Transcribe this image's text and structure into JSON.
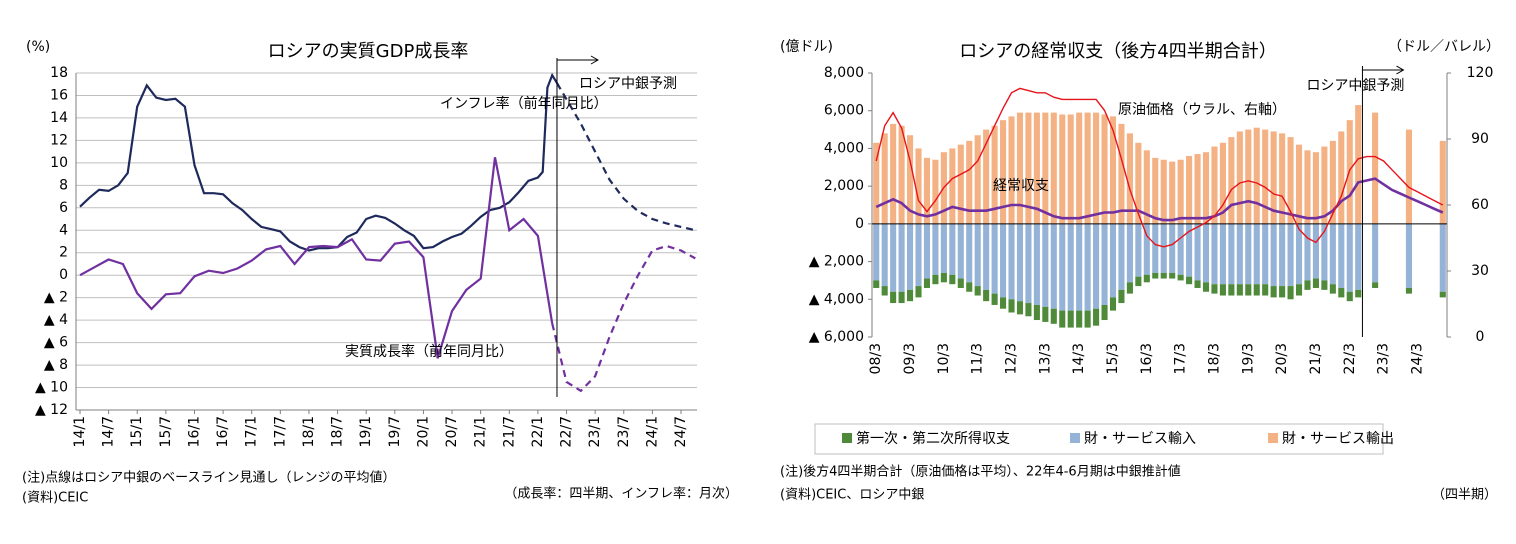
{
  "chart_data": [
    {
      "type": "line",
      "title": "ロシアの実質GDP成長率",
      "y_unit": "(%)",
      "ylim": [
        -12,
        18
      ],
      "yticks": [
        18,
        16,
        14,
        12,
        10,
        8,
        6,
        4,
        2,
        0,
        {
          "value": -2,
          "label": "▲ 2"
        },
        {
          "value": -4,
          "label": "▲ 4"
        },
        {
          "value": -6,
          "label": "▲ 6"
        },
        {
          "value": -8,
          "label": "▲ 8"
        },
        {
          "value": -10,
          "label": "▲ 10"
        },
        {
          "value": -12,
          "label": "▲ 12"
        }
      ],
      "grid": true,
      "xticks": [
        "14/1",
        "14/7",
        "15/1",
        "15/7",
        "16/1",
        "16/7",
        "17/1",
        "17/7",
        "18/1",
        "18/7",
        "19/1",
        "19/7",
        "20/1",
        "20/7",
        "21/1",
        "21/7",
        "22/1",
        "22/7",
        "23/1",
        "23/7",
        "24/1",
        "24/7"
      ],
      "series": [
        {
          "name": "インフレ率（前年同月比）",
          "color": "#1f2a5c",
          "x": [
            "14/1",
            "14/3",
            "14/5",
            "14/7",
            "14/9",
            "14/11",
            "15/1",
            "15/3",
            "15/5",
            "15/7",
            "15/9",
            "15/11",
            "16/1",
            "16/3",
            "16/5",
            "16/7",
            "16/9",
            "16/11",
            "17/1",
            "17/3",
            "17/5",
            "17/7",
            "17/9",
            "17/11",
            "18/1",
            "18/3",
            "18/5",
            "18/7",
            "18/9",
            "18/11",
            "19/1",
            "19/3",
            "19/5",
            "19/7",
            "19/9",
            "19/11",
            "20/1",
            "20/3",
            "20/5",
            "20/7",
            "20/9",
            "20/11",
            "21/1",
            "21/3",
            "21/5",
            "21/7",
            "21/9",
            "21/11",
            "22/1",
            "22/2",
            "22/3",
            "22/4",
            "22/5"
          ],
          "values": [
            6.1,
            6.9,
            7.6,
            7.5,
            8.0,
            9.1,
            15.0,
            16.9,
            15.8,
            15.6,
            15.7,
            15.0,
            9.8,
            7.3,
            7.3,
            7.2,
            6.4,
            5.8,
            5.0,
            4.3,
            4.1,
            3.9,
            3.0,
            2.5,
            2.2,
            2.4,
            2.4,
            2.5,
            3.4,
            3.8,
            5.0,
            5.3,
            5.1,
            4.6,
            4.0,
            3.5,
            2.4,
            2.5,
            3.0,
            3.4,
            3.7,
            4.4,
            5.2,
            5.8,
            6.0,
            6.5,
            7.4,
            8.4,
            8.7,
            9.2,
            16.7,
            17.8,
            17.1
          ],
          "forecast_x": [
            "22/5",
            "22/10",
            "23/1",
            "23/4",
            "23/7",
            "23/10",
            "24/1",
            "24/4",
            "24/7",
            "24/10"
          ],
          "forecast_values": [
            17.1,
            13.5,
            11.0,
            8.5,
            6.8,
            5.7,
            5.0,
            4.6,
            4.3,
            4.0
          ]
        },
        {
          "name": "実質成長率（前年同月比）",
          "color": "#7030a0",
          "x": [
            "14/1",
            "14/4",
            "14/7",
            "14/10",
            "15/1",
            "15/4",
            "15/7",
            "15/10",
            "16/1",
            "16/4",
            "16/7",
            "16/10",
            "17/1",
            "17/4",
            "17/7",
            "17/10",
            "18/1",
            "18/4",
            "18/7",
            "18/10",
            "19/1",
            "19/4",
            "19/7",
            "19/10",
            "20/1",
            "20/4",
            "20/7",
            "20/10",
            "21/1",
            "21/4",
            "21/7",
            "21/10",
            "22/1",
            "22/4"
          ],
          "values": [
            0.0,
            0.7,
            1.4,
            1.0,
            -1.6,
            -3.0,
            -1.7,
            -1.6,
            -0.1,
            0.4,
            0.2,
            0.6,
            1.3,
            2.3,
            2.6,
            1.0,
            2.5,
            2.6,
            2.5,
            3.2,
            1.4,
            1.3,
            2.8,
            3.0,
            1.6,
            -7.4,
            -3.2,
            -1.3,
            -0.3,
            10.5,
            4.0,
            5.0,
            3.5,
            -4.3
          ],
          "forecast_x": [
            "22/4",
            "22/7",
            "22/10",
            "23/1",
            "23/4",
            "23/7",
            "23/10",
            "24/1",
            "24/4",
            "24/7",
            "24/10"
          ],
          "forecast_values": [
            -4.3,
            -9.5,
            -10.3,
            -9.0,
            -5.5,
            -2.5,
            0.0,
            2.2,
            2.6,
            2.2,
            1.5
          ]
        }
      ],
      "forecast_label": "ロシア中銀予測",
      "notes": [
        "(注)点線はロシア中銀のベースライン見通し（レンジの平均値）",
        "(資料)CEIC"
      ],
      "frequency_note": "（成長率：四半期、インフレ率：月次）"
    },
    {
      "type": "bar_line",
      "title": "ロシアの経常収支（後方4四半期合計）",
      "y_unit": "(億ドル)",
      "y2_unit": "（ドル／バレル）",
      "ylim": [
        -6000,
        8000
      ],
      "yticks": [
        {
          "value": 8000,
          "label": "8,000"
        },
        {
          "value": 6000,
          "label": "6,000"
        },
        {
          "value": 4000,
          "label": "4,000"
        },
        {
          "value": 2000,
          "label": "2,000"
        },
        0,
        {
          "value": -2000,
          "label": "▲ 2,000"
        },
        {
          "value": -4000,
          "label": "▲ 4,000"
        },
        {
          "value": -6000,
          "label": "▲ 6,000"
        }
      ],
      "y2lim": [
        0,
        120
      ],
      "y2ticks": [
        120,
        90,
        60,
        30,
        0
      ],
      "categories": [
        "08/3",
        null,
        null,
        null,
        "09/3",
        null,
        null,
        null,
        "10/3",
        null,
        null,
        null,
        "11/3",
        null,
        null,
        null,
        "12/3",
        null,
        null,
        null,
        "13/3",
        null,
        null,
        null,
        "14/3",
        null,
        null,
        null,
        "15/3",
        null,
        null,
        null,
        "16/3",
        null,
        null,
        null,
        "17/3",
        null,
        null,
        null,
        "18/3",
        null,
        null,
        null,
        "19/3",
        null,
        null,
        null,
        "20/3",
        null,
        null,
        null,
        "21/3",
        null,
        null,
        null,
        "22/3",
        null,
        null,
        null,
        "23/3",
        null,
        null,
        null,
        "24/3",
        null,
        null,
        null
      ],
      "legend": "bottom",
      "series": [
        {
          "name": "第一次・第二次所得収支",
          "color": "#4e8a3a",
          "values": [
            -400,
            -500,
            -600,
            -600,
            -600,
            -600,
            -500,
            -500,
            -500,
            -500,
            -500,
            -500,
            -500,
            -600,
            -600,
            -600,
            -700,
            -700,
            -700,
            -800,
            -800,
            -800,
            -900,
            -900,
            -900,
            -900,
            -900,
            -800,
            -700,
            -700,
            -600,
            -500,
            -400,
            -300,
            -300,
            -300,
            -300,
            -400,
            -400,
            -500,
            -500,
            -600,
            -600,
            -600,
            -600,
            -600,
            -600,
            -600,
            -600,
            -700,
            -600,
            -500,
            -500,
            -500,
            -500,
            -500,
            -500,
            -400,
            null,
            -300,
            null,
            null,
            null,
            -300,
            null,
            null,
            null,
            -300
          ]
        },
        {
          "name": "財・サービス輸入",
          "color": "#95b3d7",
          "values": [
            -3000,
            -3300,
            -3600,
            -3600,
            -3500,
            -3300,
            -2900,
            -2700,
            -2600,
            -2700,
            -2900,
            -3100,
            -3300,
            -3500,
            -3700,
            -3900,
            -4000,
            -4100,
            -4200,
            -4300,
            -4400,
            -4500,
            -4600,
            -4600,
            -4600,
            -4600,
            -4500,
            -4300,
            -3900,
            -3500,
            -3100,
            -2800,
            -2700,
            -2600,
            -2600,
            -2600,
            -2700,
            -2800,
            -3000,
            -3100,
            -3200,
            -3200,
            -3200,
            -3200,
            -3200,
            -3200,
            -3200,
            -3300,
            -3300,
            -3300,
            -3200,
            -3000,
            -2900,
            -3000,
            -3200,
            -3400,
            -3600,
            -3500,
            null,
            -3100,
            null,
            null,
            null,
            -3400,
            null,
            null,
            null,
            -3600
          ]
        },
        {
          "name": "財・サービス輸出",
          "color": "#f4b183",
          "values": [
            4300,
            4800,
            5300,
            5200,
            4700,
            4000,
            3500,
            3400,
            3800,
            4000,
            4200,
            4400,
            4700,
            5000,
            5200,
            5500,
            5700,
            5900,
            5900,
            5900,
            5900,
            5900,
            5800,
            5800,
            5900,
            5900,
            5900,
            5800,
            5700,
            5300,
            4800,
            4300,
            3900,
            3500,
            3400,
            3300,
            3400,
            3600,
            3700,
            3800,
            4100,
            4300,
            4600,
            4900,
            5000,
            5100,
            5000,
            4900,
            4800,
            4600,
            4200,
            3900,
            3800,
            4100,
            4400,
            4900,
            5500,
            6300,
            null,
            5900,
            null,
            null,
            null,
            5000,
            null,
            null,
            null,
            4400
          ]
        }
      ],
      "line_series": [
        {
          "name": "経常収支",
          "color": "#7030a0",
          "values": [
            900,
            1100,
            1300,
            1100,
            700,
            500,
            400,
            500,
            700,
            900,
            800,
            700,
            700,
            700,
            800,
            900,
            1000,
            1000,
            900,
            800,
            600,
            400,
            300,
            300,
            300,
            400,
            500,
            600,
            600,
            700,
            700,
            700,
            500,
            300,
            200,
            200,
            300,
            300,
            300,
            300,
            400,
            600,
            1000,
            1100,
            1200,
            1100,
            900,
            700,
            600,
            500,
            400,
            300,
            300,
            400,
            700,
            1200,
            1500,
            2200,
            2300,
            2400,
            2100,
            1800,
            1600,
            1400,
            1200,
            1000,
            800,
            600
          ]
        },
        {
          "name": "原油価格（ウラル、右軸）",
          "color": "#e8141b",
          "axis": "y2",
          "values": [
            80,
            96,
            102,
            95,
            80,
            62,
            57,
            62,
            68,
            72,
            74,
            76,
            80,
            88,
            96,
            104,
            111,
            113,
            112,
            111,
            111,
            109,
            108,
            108,
            108,
            108,
            108,
            103,
            94,
            81,
            67,
            56,
            46,
            42,
            41,
            42,
            45,
            48,
            50,
            52,
            55,
            60,
            67,
            70,
            71,
            70,
            68,
            65,
            64,
            57,
            49,
            45,
            43,
            48,
            56,
            64,
            76,
            81,
            82,
            82,
            80,
            76,
            72,
            68,
            66,
            64,
            62,
            60
          ]
        }
      ],
      "forecast_label": "ロシア中銀予測",
      "notes": [
        "(注)後方4四半期合計（原油価格は平均）、22年4-6月期は中銀推計値",
        "(資料)CEIC、ロシア中銀"
      ],
      "frequency_note": "（四半期）"
    }
  ]
}
